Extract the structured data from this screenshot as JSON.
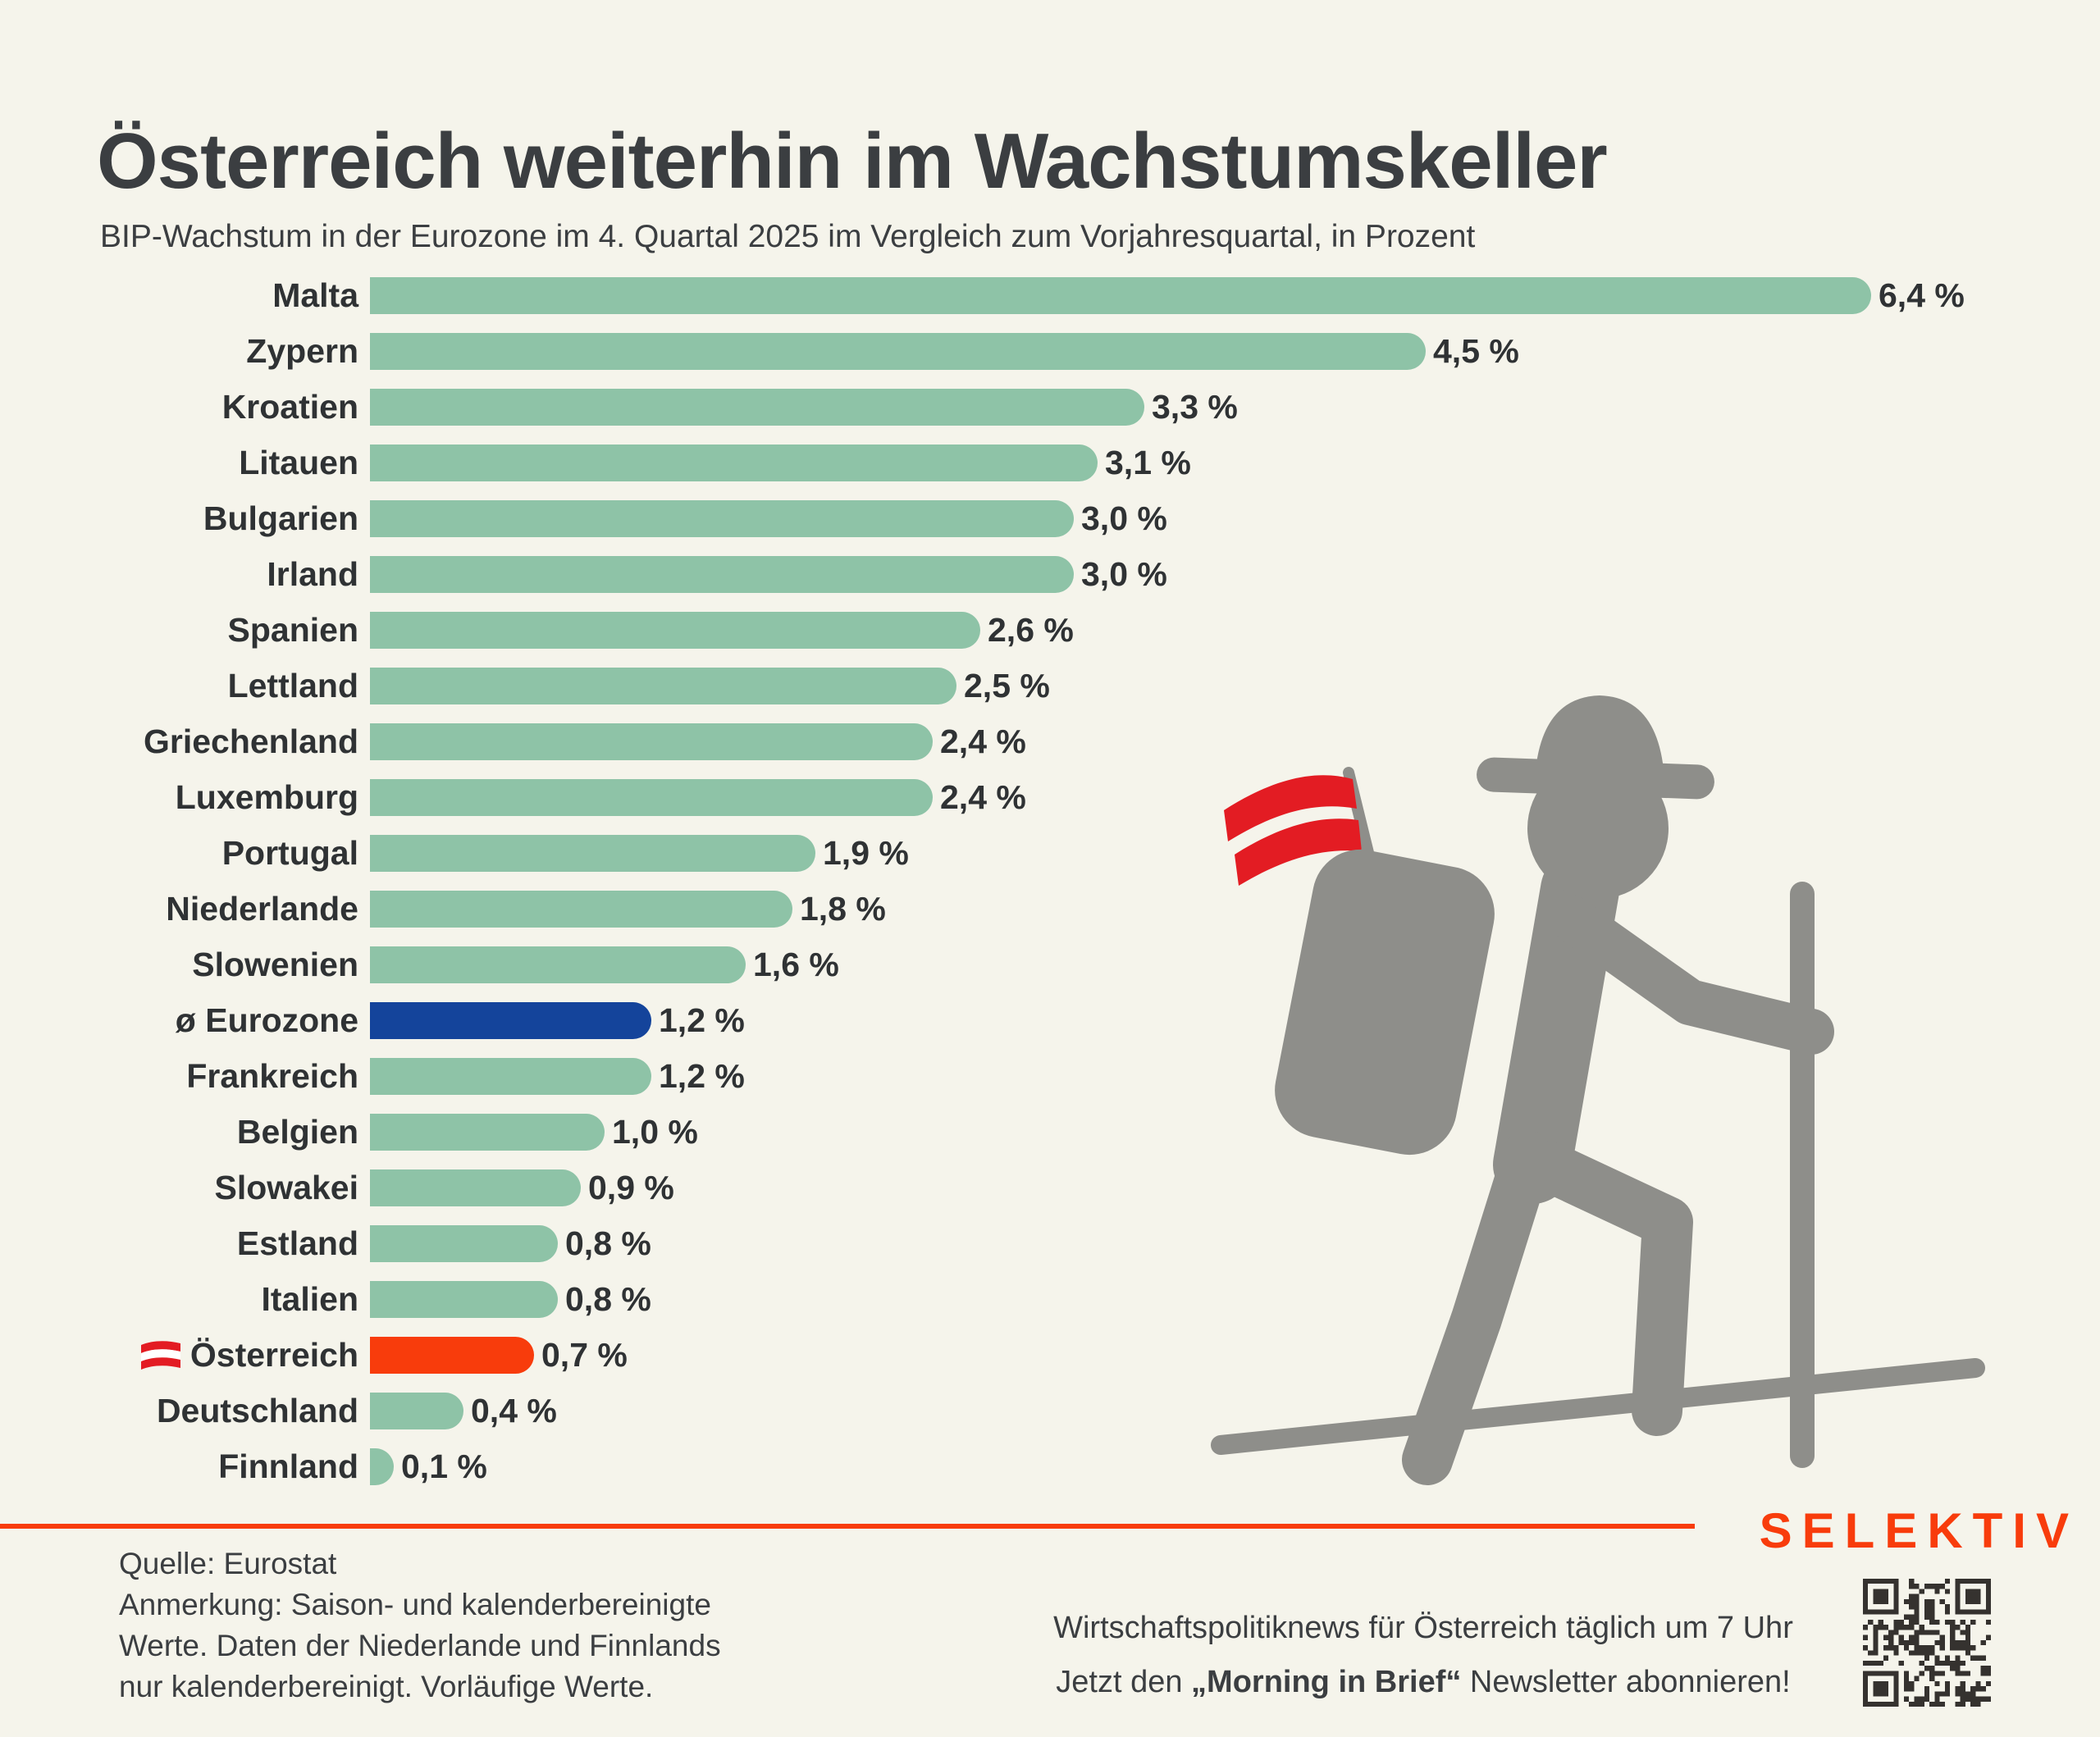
{
  "page": {
    "background": "#f5f4eb"
  },
  "header": {
    "title": "Österreich weiterhin im Wachstumskeller",
    "subtitle": "BIP-Wachstum in der Eurozone im 4. Quartal 2025 im Vergleich zum Vorjahresquartal, in Prozent"
  },
  "chart_data": {
    "type": "bar",
    "orientation": "horizontal",
    "title": "BIP-Wachstum in der Eurozone im 4. Quartal 2025 im Vergleich zum Vorjahresquartal",
    "unit": "%",
    "xlim": [
      0,
      6.6
    ],
    "grid": false,
    "categories": [
      "Malta",
      "Zypern",
      "Kroatien",
      "Litauen",
      "Bulgarien",
      "Irland",
      "Spanien",
      "Lettland",
      "Griechenland",
      "Luxemburg",
      "Portugal",
      "Niederlande",
      "Slowenien",
      "ø Eurozone",
      "Frankreich",
      "Belgien",
      "Slowakei",
      "Estland",
      "Italien",
      "Österreich",
      "Deutschland",
      "Finnland"
    ],
    "values": [
      6.4,
      4.5,
      3.3,
      3.1,
      3.0,
      3.0,
      2.6,
      2.5,
      2.4,
      2.4,
      1.9,
      1.8,
      1.6,
      1.2,
      1.2,
      1.0,
      0.9,
      0.8,
      0.8,
      0.7,
      0.4,
      0.1
    ],
    "value_labels": [
      "6,4 %",
      "4,5 %",
      "3,3 %",
      "3,1 %",
      "3,0 %",
      "3,0 %",
      "2,6 %",
      "2,5 %",
      "2,4 %",
      "2,4 %",
      "1,9 %",
      "1,8 %",
      "1,6 %",
      "1,2 %",
      "1,2 %",
      "1,0 %",
      "0,9 %",
      "0,8 %",
      "0,8 %",
      "0,7 %",
      "0,4 %",
      "0,1 %"
    ],
    "color_keys": [
      "default",
      "default",
      "default",
      "default",
      "default",
      "default",
      "default",
      "default",
      "default",
      "default",
      "default",
      "default",
      "default",
      "eurozone",
      "default",
      "default",
      "default",
      "default",
      "default",
      "austria",
      "default",
      "default"
    ],
    "flags": [
      false,
      false,
      false,
      false,
      false,
      false,
      false,
      false,
      false,
      false,
      false,
      false,
      false,
      false,
      false,
      false,
      false,
      false,
      false,
      true,
      false,
      false
    ],
    "colors": {
      "default": "#8ec3a7",
      "eurozone": "#14449b",
      "austria": "#f83c0c"
    }
  },
  "illustration": {
    "name": "hiker-with-austrian-flag-backpack",
    "body_color": "#8e8e8a",
    "flag_red": "#e31c23"
  },
  "footer": {
    "divider_color": "#f83c0c",
    "logo": "SELEKTIV",
    "logo_color": "#f83c0c",
    "source_lines": [
      "Quelle: Eurostat",
      "Anmerkung: Saison- und kalenderbereinigte",
      "Werte. Daten der Niederlande und Finnlands",
      "nur kalenderbereinigt. Vorläufige Werte."
    ],
    "newsletter": {
      "line1": "Wirtschaftspolitiknews für Österreich täglich um 7 Uhr",
      "line2_prefix": "Jetzt den ",
      "line2_bold": "„Morning in Brief“",
      "line2_suffix": " Newsletter abonnieren!"
    }
  }
}
